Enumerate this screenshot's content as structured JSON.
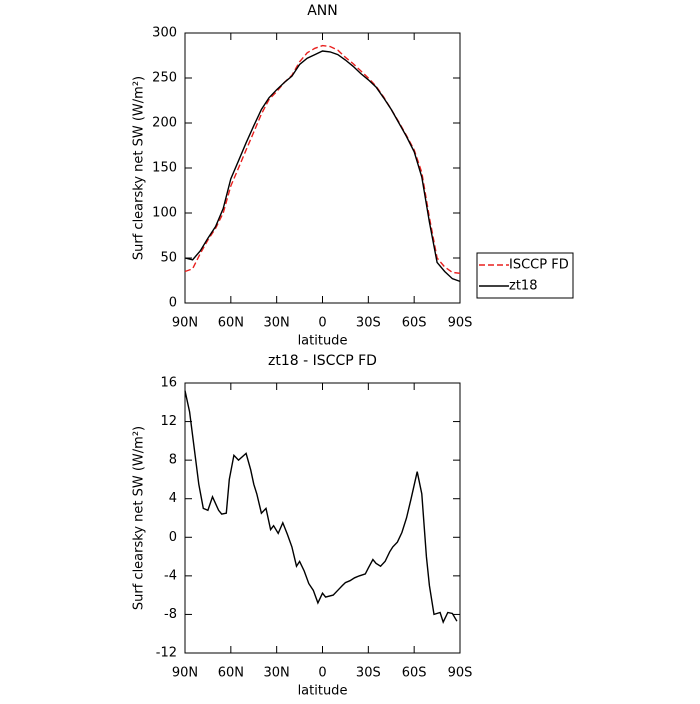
{
  "chart_data": [
    {
      "type": "line",
      "title": "ANN",
      "xlabel": "latitude",
      "ylabel": "Surf clearsky net SW (W/m²)",
      "x": [
        90,
        85,
        80,
        75,
        70,
        65,
        60,
        55,
        50,
        45,
        40,
        35,
        30,
        25,
        20,
        15,
        10,
        5,
        0,
        -5,
        -10,
        -15,
        -20,
        -25,
        -30,
        -35,
        -40,
        -45,
        -50,
        -55,
        -60,
        -65,
        -70,
        -75,
        -80,
        -85,
        -90
      ],
      "series": [
        {
          "name": "ISCCP FD",
          "color": "#e8201e",
          "dash": true,
          "values": [
            35,
            38,
            55,
            70,
            83,
            100,
            130,
            150,
            170,
            190,
            210,
            226,
            235,
            245,
            253,
            268,
            278,
            283,
            286,
            285,
            281,
            273,
            266,
            258,
            250,
            241,
            229,
            215,
            201,
            186,
            170,
            145,
            95,
            50,
            40,
            34,
            33
          ]
        },
        {
          "name": "zt18",
          "color": "#000000",
          "dash": false,
          "values": [
            50,
            48,
            58,
            72,
            85,
            105,
            138,
            158,
            178,
            197,
            215,
            228,
            237,
            245,
            252,
            265,
            272,
            276,
            280,
            279,
            276,
            270,
            263,
            255,
            248,
            240,
            228,
            215,
            200,
            185,
            168,
            140,
            90,
            45,
            35,
            27,
            24
          ]
        }
      ],
      "xlim": [
        90,
        -90
      ],
      "xticks": [
        {
          "value": 90,
          "label": "90N"
        },
        {
          "value": 60,
          "label": "60N"
        },
        {
          "value": 30,
          "label": "30N"
        },
        0,
        {
          "value": -30,
          "label": "30S"
        },
        {
          "value": -60,
          "label": "60S"
        },
        {
          "value": -90,
          "label": "90S"
        }
      ],
      "ylim": [
        0,
        300
      ],
      "yticks": [
        0,
        50,
        100,
        150,
        200,
        250,
        300
      ],
      "legend": "right"
    },
    {
      "type": "line",
      "title": "zt18 - ISCCP FD",
      "xlabel": "latitude",
      "ylabel": "Surf clearsky net SW (W/m²)",
      "x": [
        90,
        87,
        81,
        78,
        75,
        72,
        68,
        66,
        63,
        61,
        58,
        55,
        50,
        47,
        45,
        43,
        40,
        37,
        34,
        32,
        29,
        26,
        23,
        20,
        17,
        15,
        12,
        9,
        6,
        3,
        0,
        -2,
        -7,
        -10,
        -13,
        -15,
        -18,
        -21,
        -24,
        -28,
        -30,
        -33,
        -35,
        -38,
        -41,
        -44,
        -46,
        -49,
        -52,
        -55,
        -58,
        -62,
        -65,
        -68,
        -70,
        -73,
        -77,
        -79,
        -82,
        -85,
        -88
      ],
      "values": [
        15.2,
        13,
        5.5,
        3,
        2.8,
        4.2,
        2.8,
        2.4,
        2.5,
        6,
        8.5,
        8,
        8.7,
        7,
        5.5,
        4.5,
        2.5,
        3,
        0.8,
        1.2,
        0.4,
        1.5,
        0.3,
        -1,
        -3,
        -2.5,
        -3.5,
        -4.8,
        -5.5,
        -6.8,
        -5.8,
        -6.2,
        -6,
        -5.5,
        -5,
        -4.7,
        -4.5,
        -4.2,
        -4,
        -3.8,
        -3.2,
        -2.3,
        -2.7,
        -3,
        -2.5,
        -1.5,
        -1,
        -0.5,
        0.5,
        2,
        4,
        6.8,
        4.5,
        -2,
        -5,
        -8,
        -7.8,
        -8.8,
        -7.8,
        -7.9,
        -8.7
      ],
      "color": "#000000",
      "xlim": [
        90,
        -90
      ],
      "xticks": [
        {
          "value": 90,
          "label": "90N"
        },
        {
          "value": 60,
          "label": "60N"
        },
        {
          "value": 30,
          "label": "30N"
        },
        0,
        {
          "value": -30,
          "label": "30S"
        },
        {
          "value": -60,
          "label": "60S"
        },
        {
          "value": -90,
          "label": "90S"
        }
      ],
      "ylim": [
        -12,
        16
      ],
      "yticks": [
        -12,
        -8,
        -4,
        0,
        4,
        8,
        12,
        16
      ]
    }
  ]
}
